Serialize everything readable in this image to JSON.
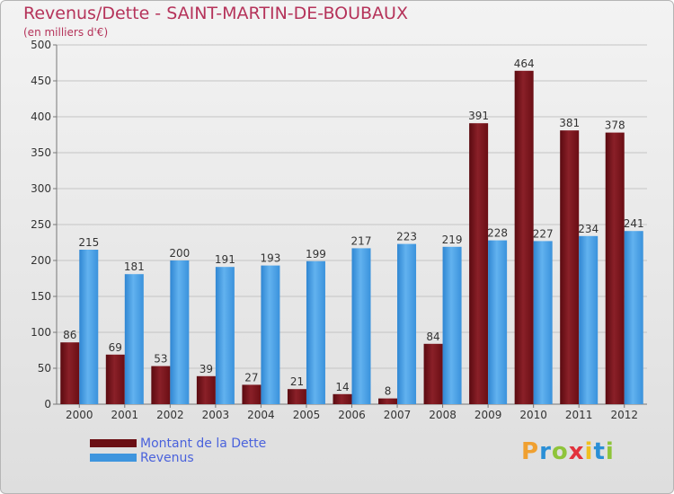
{
  "header": {
    "title": "Revenus/Dette - SAINT-MARTIN-DE-BOUBAUX",
    "subtitle": "(en milliers d'€)"
  },
  "legend": {
    "items": [
      {
        "label": "Montant de la Dette",
        "color": "#6b0f14"
      },
      {
        "label": "Revenus",
        "color": "#3e95de"
      }
    ]
  },
  "logo": {
    "text": "Proxiti",
    "letters": [
      "P",
      "r",
      "o",
      "x",
      "i",
      "t",
      "i"
    ],
    "colors": [
      "#f0a030",
      "#2a8fd6",
      "#8fc43a",
      "#e2323c",
      "#f0c020",
      "#2a8fd6",
      "#8fc43a"
    ]
  },
  "chart_data": {
    "type": "bar",
    "categories": [
      "2000",
      "2001",
      "2002",
      "2003",
      "2004",
      "2005",
      "2006",
      "2007",
      "2008",
      "2009",
      "2010",
      "2011",
      "2012"
    ],
    "series": [
      {
        "name": "Montant de la Dette",
        "color": "#6b0f14",
        "values": [
          86,
          69,
          53,
          39,
          27,
          21,
          14,
          8,
          84,
          391,
          464,
          381,
          378
        ]
      },
      {
        "name": "Revenus",
        "color": "#3e95de",
        "values": [
          215,
          181,
          200,
          191,
          193,
          199,
          217,
          223,
          219,
          228,
          227,
          234,
          241
        ]
      }
    ],
    "ylim": [
      0,
      500
    ],
    "yticks": [
      0,
      50,
      100,
      150,
      200,
      250,
      300,
      350,
      400,
      450,
      500
    ],
    "grid": true,
    "legend_position": "bottom-left"
  }
}
